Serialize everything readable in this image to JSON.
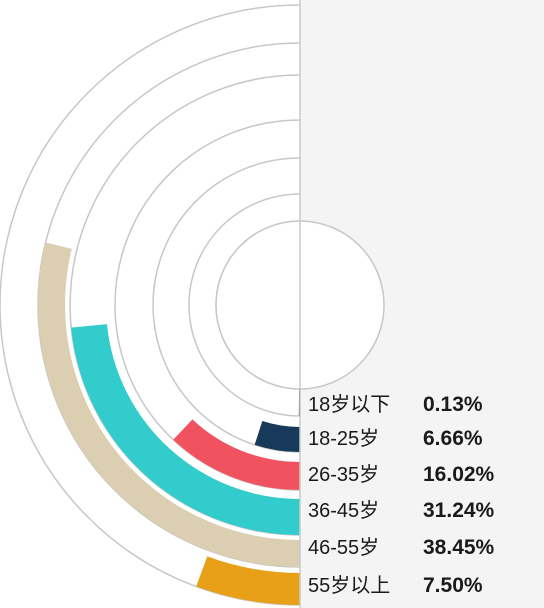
{
  "chart_data": {
    "type": "radial-bar",
    "title": "",
    "unit": "%",
    "categories": [
      "18岁以下",
      "18-25岁",
      "26-35岁",
      "36-45岁",
      "46-55岁",
      "55岁以上"
    ],
    "values": [
      0.13,
      6.66,
      16.02,
      31.24,
      38.45,
      7.5
    ],
    "value_labels": [
      "0.13%",
      "6.66%",
      "16.02%",
      "31.24%",
      "38.45%",
      "7.50%"
    ],
    "colors": [
      "#1f3550",
      "#183a5a",
      "#f0535f",
      "#33cccc",
      "#dcceb0",
      "#e7a018"
    ],
    "legend_position": "bottom-right",
    "grid": false
  }
}
